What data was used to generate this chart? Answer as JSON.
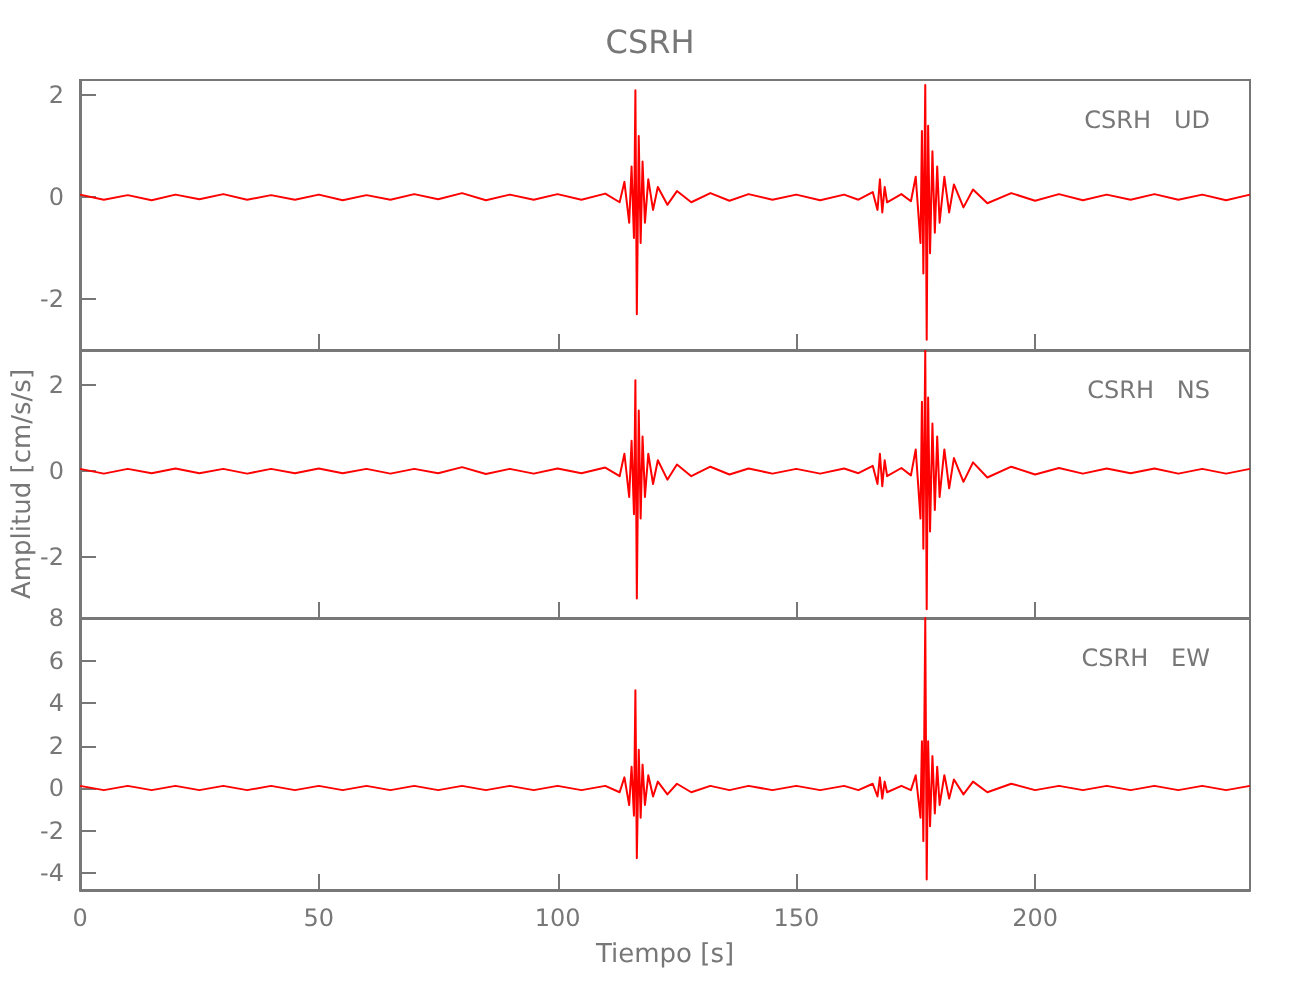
{
  "chart_data": [
    {
      "type": "line",
      "title": "CSRH",
      "annotations": [
        "CSRH   UD"
      ],
      "xlim": [
        0,
        245
      ],
      "xticks": [
        0,
        50,
        100,
        150,
        200
      ],
      "ylim": [
        -3,
        2.3
      ],
      "yticks": [
        -2,
        0,
        2
      ],
      "tick_labels": "y",
      "grid": false,
      "marker": "none",
      "line_style": "solid",
      "x": [
        0,
        5,
        10,
        15,
        20,
        25,
        30,
        35,
        40,
        45,
        50,
        55,
        60,
        65,
        70,
        75,
        80,
        85,
        90,
        95,
        100,
        105,
        110,
        113,
        114,
        115,
        115.5,
        116,
        116.3,
        116.6,
        117,
        117.4,
        117.8,
        118.3,
        119,
        120,
        121,
        123,
        125,
        128,
        132,
        136,
        140,
        145,
        150,
        155,
        160,
        163,
        166,
        167,
        167.5,
        168,
        168.5,
        169,
        172,
        174,
        175,
        176,
        176.3,
        176.6,
        177,
        177.3,
        177.6,
        178,
        178.5,
        179,
        179.5,
        180,
        181,
        182,
        183,
        185,
        187,
        190,
        195,
        200,
        205,
        210,
        215,
        220,
        225,
        230,
        235,
        240,
        245
      ],
      "series": [
        {
          "color": "#ff0000",
          "values": [
            0.05,
            -0.05,
            0.04,
            -0.06,
            0.05,
            -0.04,
            0.06,
            -0.05,
            0.04,
            -0.05,
            0.05,
            -0.06,
            0.04,
            -0.05,
            0.06,
            -0.04,
            0.08,
            -0.06,
            0.05,
            -0.05,
            0.06,
            -0.05,
            0.07,
            -0.1,
            0.3,
            -0.5,
            0.6,
            -0.8,
            2.1,
            -2.3,
            1.2,
            -0.9,
            0.7,
            -0.5,
            0.35,
            -0.25,
            0.2,
            -0.15,
            0.12,
            -0.1,
            0.08,
            -0.07,
            0.06,
            -0.05,
            0.05,
            -0.06,
            0.05,
            -0.05,
            0.1,
            -0.25,
            0.35,
            -0.3,
            0.2,
            -0.1,
            0.06,
            -0.08,
            0.4,
            -0.9,
            1.3,
            -1.5,
            2.2,
            -2.8,
            1.4,
            -1.1,
            0.9,
            -0.7,
            0.6,
            -0.5,
            0.4,
            -0.3,
            0.25,
            -0.2,
            0.15,
            -0.12,
            0.08,
            -0.07,
            0.06,
            -0.06,
            0.05,
            -0.05,
            0.06,
            -0.05,
            0.05,
            -0.06,
            0.05
          ]
        }
      ]
    },
    {
      "type": "line",
      "ylabel": "Amplitud [cm/s/s]",
      "annotations": [
        "CSRH   NS"
      ],
      "xlim": [
        0,
        245
      ],
      "xticks": [
        0,
        50,
        100,
        150,
        200
      ],
      "ylim": [
        -3.4,
        2.8
      ],
      "yticks": [
        -2,
        0,
        2
      ],
      "tick_labels": "y",
      "grid": false,
      "marker": "none",
      "line_style": "solid",
      "x": [
        0,
        5,
        10,
        15,
        20,
        25,
        30,
        35,
        40,
        45,
        50,
        55,
        60,
        65,
        70,
        75,
        80,
        85,
        90,
        95,
        100,
        105,
        110,
        113,
        114,
        115,
        115.5,
        116,
        116.3,
        116.6,
        117,
        117.4,
        117.8,
        118.3,
        119,
        120,
        121,
        123,
        125,
        128,
        132,
        136,
        140,
        145,
        150,
        155,
        160,
        163,
        166,
        167,
        167.5,
        168,
        168.5,
        169,
        172,
        174,
        175,
        176,
        176.3,
        176.6,
        177,
        177.3,
        177.6,
        178,
        178.5,
        179,
        179.5,
        180,
        181,
        182,
        183,
        185,
        187,
        190,
        195,
        200,
        205,
        210,
        215,
        220,
        225,
        230,
        235,
        240,
        245
      ],
      "series": [
        {
          "color": "#ff0000",
          "values": [
            0.05,
            -0.06,
            0.05,
            -0.05,
            0.06,
            -0.05,
            0.05,
            -0.06,
            0.05,
            -0.05,
            0.06,
            -0.05,
            0.05,
            -0.06,
            0.05,
            -0.05,
            0.09,
            -0.07,
            0.05,
            -0.06,
            0.06,
            -0.05,
            0.08,
            -0.12,
            0.4,
            -0.6,
            0.7,
            -1.0,
            2.1,
            -2.95,
            1.4,
            -1.1,
            0.8,
            -0.6,
            0.4,
            -0.3,
            0.25,
            -0.2,
            0.15,
            -0.12,
            0.1,
            -0.08,
            0.06,
            -0.06,
            0.05,
            -0.06,
            0.06,
            -0.05,
            0.12,
            -0.3,
            0.4,
            -0.35,
            0.25,
            -0.12,
            0.07,
            -0.1,
            0.5,
            -1.1,
            1.6,
            -1.8,
            2.8,
            -3.2,
            1.7,
            -1.4,
            1.1,
            -0.9,
            0.8,
            -0.6,
            0.5,
            -0.4,
            0.3,
            -0.25,
            0.2,
            -0.15,
            0.1,
            -0.08,
            0.07,
            -0.06,
            0.06,
            -0.05,
            0.06,
            -0.06,
            0.05,
            -0.06,
            0.05
          ]
        }
      ]
    },
    {
      "type": "line",
      "xlabel": "Tiempo [s]",
      "annotations": [
        "CSRH   EW"
      ],
      "xlim": [
        0,
        245
      ],
      "xticks": [
        0,
        50,
        100,
        150,
        200
      ],
      "ylim": [
        -4.8,
        8
      ],
      "yticks": [
        -4,
        -2,
        0,
        2,
        4,
        6,
        8
      ],
      "grid": false,
      "marker": "none",
      "line_style": "solid",
      "x": [
        0,
        5,
        10,
        15,
        20,
        25,
        30,
        35,
        40,
        45,
        50,
        55,
        60,
        65,
        70,
        75,
        80,
        85,
        90,
        95,
        100,
        105,
        110,
        113,
        114,
        115,
        115.5,
        116,
        116.3,
        116.6,
        117,
        117.4,
        117.8,
        118.3,
        119,
        120,
        121,
        123,
        125,
        128,
        132,
        136,
        140,
        145,
        150,
        155,
        160,
        163,
        166,
        167,
        167.5,
        168,
        168.5,
        169,
        172,
        174,
        175,
        176,
        176.3,
        176.6,
        177,
        177.3,
        177.6,
        178,
        178.5,
        179,
        179.5,
        180,
        181,
        182,
        183,
        185,
        187,
        190,
        195,
        200,
        205,
        210,
        215,
        220,
        225,
        230,
        235,
        240,
        245
      ],
      "series": [
        {
          "color": "#ff0000",
          "values": [
            0.1,
            -0.1,
            0.1,
            -0.1,
            0.1,
            -0.1,
            0.1,
            -0.1,
            0.1,
            -0.1,
            0.1,
            -0.1,
            0.1,
            -0.1,
            0.1,
            -0.1,
            0.1,
            -0.1,
            0.1,
            -0.1,
            0.1,
            -0.1,
            0.1,
            -0.2,
            0.5,
            -0.8,
            1.0,
            -1.3,
            4.6,
            -3.3,
            1.8,
            -1.4,
            1.1,
            -0.8,
            0.6,
            -0.4,
            0.3,
            -0.3,
            0.2,
            -0.2,
            0.1,
            -0.1,
            0.1,
            -0.1,
            0.1,
            -0.1,
            0.1,
            -0.1,
            0.2,
            -0.4,
            0.5,
            -0.5,
            0.3,
            -0.2,
            0.1,
            -0.1,
            0.6,
            -1.4,
            2.2,
            -2.5,
            8,
            -4.3,
            2.2,
            -1.8,
            1.5,
            -1.2,
            1.0,
            -0.8,
            0.6,
            -0.5,
            0.4,
            -0.3,
            0.3,
            -0.2,
            0.2,
            -0.1,
            0.1,
            -0.1,
            0.1,
            -0.1,
            0.1,
            -0.1,
            0.1,
            -0.1,
            0.1
          ]
        }
      ]
    }
  ]
}
